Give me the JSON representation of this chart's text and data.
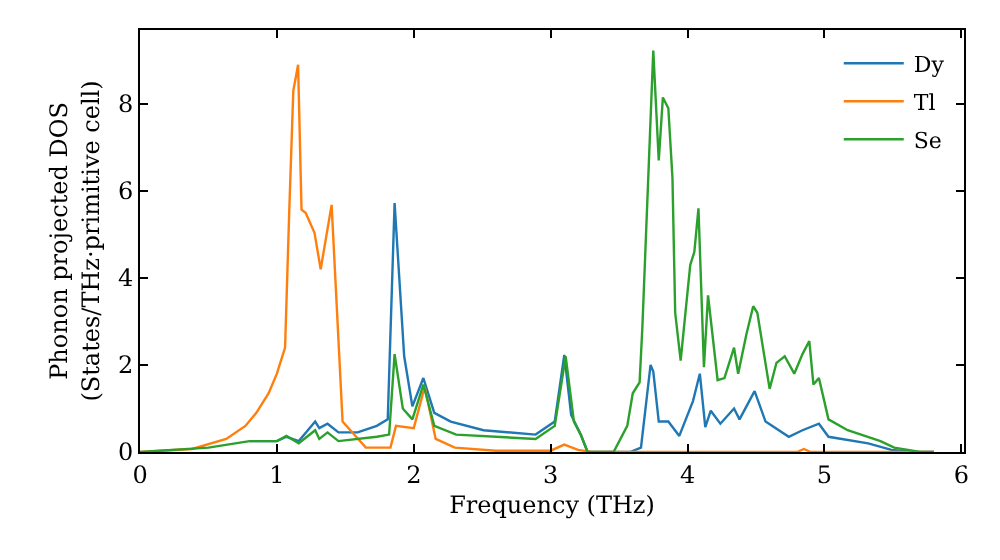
{
  "chart_data": {
    "type": "line",
    "xlabel": "Frequency (THz)",
    "ylabel": "Phonon projected DOS\n(States/THz·primitive cell)",
    "xlim": [
      0,
      6.02
    ],
    "ylim": [
      0,
      9.7
    ],
    "xticks": [
      0,
      1,
      2,
      3,
      4,
      5,
      6
    ],
    "yticks": [
      0,
      2,
      4,
      6,
      8
    ],
    "grid": false,
    "legend": "top right",
    "marker": "none",
    "line_style": "solid",
    "series": [
      {
        "name": "Dy",
        "color": "#1f77b4",
        "x": [
          0.8,
          1.0,
          1.07,
          1.16,
          1.28,
          1.31,
          1.37,
          1.45,
          1.59,
          1.73,
          1.81,
          1.86,
          1.93,
          1.99,
          2.07,
          2.15,
          2.27,
          2.51,
          2.89,
          3.03,
          3.1,
          3.15,
          3.22,
          3.27,
          3.58,
          3.66,
          3.73,
          3.75,
          3.79,
          3.86,
          3.94,
          4.04,
          4.09,
          4.13,
          4.17,
          4.24,
          4.34,
          4.38,
          4.49,
          4.57,
          4.74,
          4.84,
          4.96,
          5.03,
          5.32,
          5.49,
          5.66,
          5.8
        ],
        "values": [
          0.25,
          0.25,
          0.35,
          0.25,
          0.7,
          0.55,
          0.65,
          0.45,
          0.45,
          0.6,
          0.75,
          5.72,
          2.2,
          1.05,
          1.7,
          0.9,
          0.7,
          0.5,
          0.4,
          0.7,
          2.23,
          0.85,
          0.4,
          0,
          0,
          0.1,
          2.0,
          1.85,
          0.7,
          0.7,
          0.37,
          1.17,
          1.8,
          0.57,
          0.95,
          0.65,
          1.0,
          0.75,
          1.4,
          0.7,
          0.35,
          0.5,
          0.65,
          0.35,
          0.2,
          0.05,
          0,
          0
        ]
      },
      {
        "name": "Tl",
        "color": "#ff7f0e",
        "x": [
          0,
          0.38,
          0.63,
          0.77,
          0.85,
          0.94,
          1.0,
          1.06,
          1.09,
          1.12,
          1.155,
          1.18,
          1.21,
          1.275,
          1.32,
          1.4,
          1.48,
          1.65,
          1.83,
          1.87,
          2.0,
          2.08,
          2.16,
          2.3,
          2.6,
          3.0,
          3.1,
          3.2,
          3.3,
          4.8,
          4.85,
          4.9,
          5.8
        ],
        "values": [
          0,
          0.07,
          0.3,
          0.6,
          0.9,
          1.35,
          1.8,
          2.4,
          5.5,
          8.3,
          8.9,
          5.57,
          5.5,
          5.04,
          4.2,
          5.68,
          0.7,
          0.1,
          0.1,
          0.6,
          0.55,
          1.5,
          0.3,
          0.1,
          0.03,
          0.03,
          0.17,
          0.05,
          0,
          0,
          0.07,
          0,
          0
        ]
      },
      {
        "name": "Se",
        "color": "#2ca02c",
        "x": [
          0,
          0.5,
          0.8,
          1.0,
          1.07,
          1.16,
          1.28,
          1.31,
          1.37,
          1.45,
          1.73,
          1.82,
          1.86,
          1.92,
          1.99,
          2.07,
          2.15,
          2.31,
          2.89,
          3.03,
          3.11,
          3.17,
          3.22,
          3.27,
          3.46,
          3.56,
          3.6,
          3.65,
          3.67,
          3.75,
          3.79,
          3.82,
          3.86,
          3.89,
          3.91,
          3.95,
          4.02,
          4.05,
          4.08,
          4.12,
          4.15,
          4.22,
          4.27,
          4.34,
          4.37,
          4.43,
          4.48,
          4.51,
          4.6,
          4.65,
          4.71,
          4.78,
          4.84,
          4.89,
          4.92,
          4.96,
          5.03,
          5.17,
          5.41,
          5.51,
          5.7,
          5.8
        ],
        "values": [
          0,
          0.1,
          0.25,
          0.25,
          0.37,
          0.2,
          0.5,
          0.3,
          0.45,
          0.25,
          0.35,
          0.4,
          2.25,
          1.0,
          0.75,
          1.55,
          0.6,
          0.4,
          0.3,
          0.6,
          2.2,
          0.7,
          0.4,
          0,
          0,
          0.6,
          1.35,
          1.6,
          2.85,
          9.23,
          6.7,
          8.15,
          7.9,
          6.3,
          3.2,
          2.1,
          4.3,
          4.6,
          5.6,
          1.95,
          3.6,
          1.65,
          1.7,
          2.4,
          1.8,
          2.7,
          3.35,
          3.2,
          1.45,
          2.05,
          2.2,
          1.8,
          2.25,
          2.55,
          1.55,
          1.7,
          0.75,
          0.5,
          0.25,
          0.1,
          0,
          0
        ]
      }
    ]
  }
}
